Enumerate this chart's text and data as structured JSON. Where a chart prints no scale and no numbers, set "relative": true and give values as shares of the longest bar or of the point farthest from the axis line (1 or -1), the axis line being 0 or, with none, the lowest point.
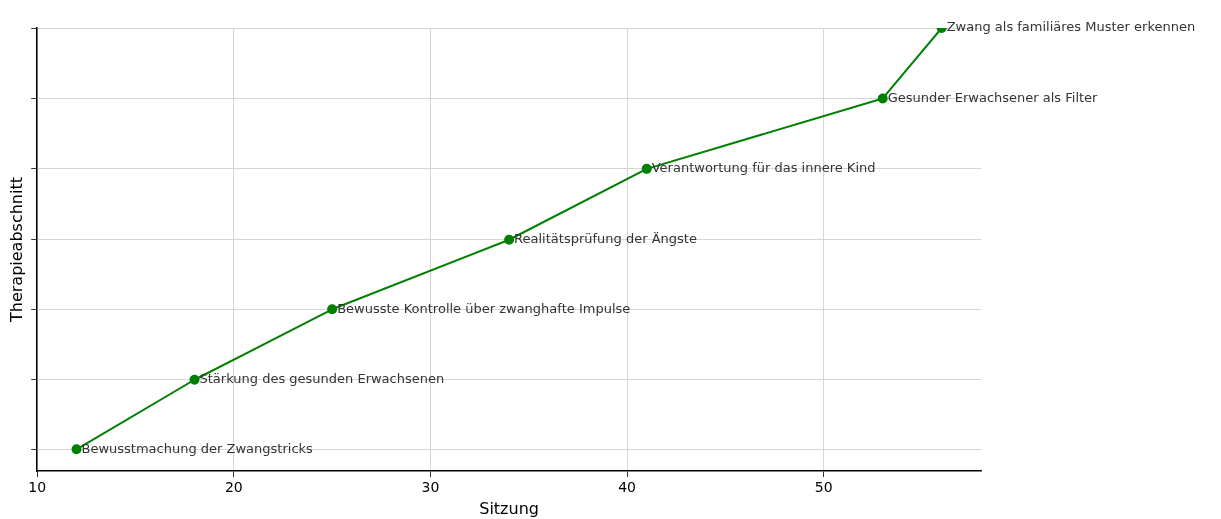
{
  "chart_data": {
    "type": "line",
    "xlabel": "Sitzung",
    "ylabel": "Therapieabschnitt",
    "relative": true,
    "x": [
      12,
      18,
      25,
      34,
      41,
      53,
      56
    ],
    "series": [
      {
        "color": "#008000",
        "values": [
          0.049,
          0.206,
          0.365,
          0.522,
          0.682,
          0.841,
          1
        ]
      }
    ],
    "xlim": [
      10,
      58
    ],
    "xticks": [
      10,
      20,
      30,
      40,
      50
    ],
    "grid": true,
    "legend": false,
    "marker": "circle",
    "line_style": "solid",
    "annotations": [
      {
        "text": "Bewusstmachung der Zwangstricks",
        "x": 12,
        "y": 0.049
      },
      {
        "text": "Stärkung des gesunden Erwachsenen",
        "x": 18,
        "y": 0.206
      },
      {
        "text": "Bewusste Kontrolle über zwanghafte Impulse",
        "x": 25,
        "y": 0.365
      },
      {
        "text": "Realitätsprüfung der Ängste",
        "x": 34,
        "y": 0.522
      },
      {
        "text": "Verantwortung für das innere Kind",
        "x": 41,
        "y": 0.682
      },
      {
        "text": "Gesunder Erwachsener als Filter",
        "x": 53,
        "y": 0.841
      },
      {
        "text": "Zwang als familiäres Muster erkennen",
        "x": 56,
        "y": 1
      }
    ]
  }
}
